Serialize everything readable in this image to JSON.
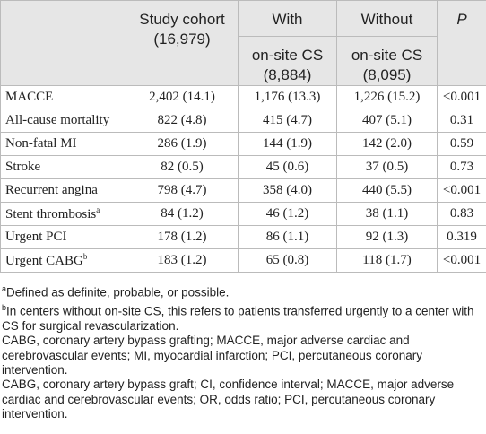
{
  "table": {
    "header": {
      "cohort": [
        "Study cohort",
        "(16,979)"
      ],
      "with": [
        "With",
        "on-site CS",
        "(8,884)"
      ],
      "without": [
        "Without",
        "on-site CS",
        "(8,095)"
      ],
      "p": "P"
    },
    "rows": [
      {
        "label": "MACCE",
        "cells": [
          "2,402 (14.1)",
          "1,176 (13.3)",
          "1,226 (15.2)",
          "<0.001"
        ]
      },
      {
        "label": "All-cause mortality",
        "cells": [
          "822 (4.8)",
          "415 (4.7)",
          "407 (5.1)",
          "0.31"
        ]
      },
      {
        "label": "Non-fatal MI",
        "cells": [
          "286 (1.9)",
          "144 (1.9)",
          "142 (2.0)",
          "0.59"
        ]
      },
      {
        "label": "Stroke",
        "cells": [
          "82 (0.5)",
          "45 (0.6)",
          "37 (0.5)",
          "0.73"
        ]
      },
      {
        "label": "Recurrent angina",
        "cells": [
          "798 (4.7)",
          "358 (4.0)",
          "440 (5.5)",
          "<0.001"
        ]
      },
      {
        "label": "Stent thrombosis",
        "sup": "a",
        "cells": [
          "84 (1.2)",
          "46 (1.2)",
          "38 (1.1)",
          "0.83"
        ]
      },
      {
        "label": "Urgent PCI",
        "cells": [
          "178 (1.2)",
          "86 (1.1)",
          "92 (1.3)",
          "0.319"
        ]
      },
      {
        "label": "Urgent CABG",
        "sup": "b",
        "cells": [
          "183 (1.2)",
          "65 (0.8)",
          "118 (1.7)",
          "<0.001"
        ]
      }
    ]
  },
  "footnotes": [
    {
      "sup": "a",
      "text": "Defined as definite, probable, or possible."
    },
    {
      "sup": "b",
      "text": "In centers without on-site CS, this refers to patients transferred urgently to a center with CS for surgical revascularization."
    },
    {
      "text": "CABG, coronary artery bypass grafting; MACCE, major adverse cardiac and cerebrovascular events; MI, myocardial infarction; PCI, percutaneous coronary intervention."
    },
    {
      "text": "CABG, coronary artery bypass graft; CI, confidence interval; MACCE, major adverse cardiac and cerebrovascular events; OR, odds ratio; PCI, percutaneous coronary intervention."
    }
  ]
}
